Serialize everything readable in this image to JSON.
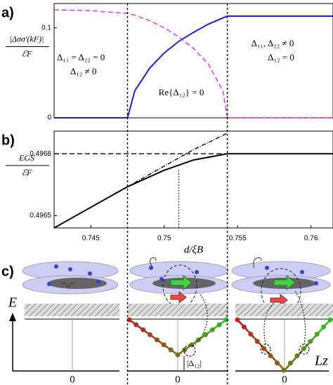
{
  "chart_data": [
    {
      "type": "line",
      "panel_label": "a)",
      "ylabel": {
        "numerator": "|Δσσ′(kF)|",
        "denominator": "ℰF"
      },
      "annotations": [
        "Δ₁₁ = Δ₂₂ = 0",
        "Δ₁₂ ≠ 0",
        "Re{Δ₁₂} = 0",
        "Δ₁₁, Δ₂₂ ≠ 0",
        "Δ₁₂ = 0"
      ],
      "x": [
        0.7425,
        0.745,
        0.7475,
        0.748,
        0.749,
        0.75,
        0.751,
        0.752,
        0.753,
        0.754,
        0.7543,
        0.756,
        0.758,
        0.76,
        0.7615
      ],
      "series": [
        {
          "color": "#1f1fd0",
          "dash": "solid",
          "values": [
            0,
            0,
            0,
            0.03,
            0.055,
            0.072,
            0.085,
            0.095,
            0.104,
            0.111,
            0.113,
            0.113,
            0.113,
            0.113,
            0.113
          ]
        },
        {
          "color": "#f020f0",
          "dash": "dashed",
          "values": [
            0.12,
            0.119,
            0.116,
            0.114,
            0.108,
            0.1,
            0.09,
            0.077,
            0.06,
            0.03,
            0,
            0,
            0,
            0,
            0
          ]
        }
      ],
      "xlim": [
        0.7425,
        0.7615
      ],
      "ylim": [
        0,
        0.127
      ],
      "yticks": [
        0,
        0.1
      ],
      "vlines": [
        0.7475,
        0.7543
      ]
    },
    {
      "type": "line",
      "panel_label": "b)",
      "ylabel": {
        "numerator": "EGS",
        "denominator": "ℰF"
      },
      "xlabel": "d/ξB",
      "x": [
        0.7425,
        0.745,
        0.7475,
        0.75,
        0.752,
        0.7543,
        0.756,
        0.758,
        0.76,
        0.7615
      ],
      "series": [
        {
          "color": "#000000",
          "dash": "solid",
          "values": [
            0.49644,
            0.49654,
            0.49664,
            0.49672,
            0.49677,
            0.4968,
            0.4968,
            0.4968,
            0.4968,
            0.4968
          ]
        },
        {
          "color": "#000000",
          "dash": "dashed",
          "values": [
            0.4968,
            0.4968,
            0.4968,
            0.4968,
            0.4968,
            0.4968,
            null,
            null,
            null,
            null
          ]
        },
        {
          "color": "#000000",
          "dash": "dashdot",
          "values": [
            null,
            null,
            0.49664,
            0.49674,
            0.49682,
            0.4969,
            null,
            null,
            null,
            null
          ]
        }
      ],
      "xlim": [
        0.7425,
        0.7615
      ],
      "ylim": [
        0.49644,
        0.49691
      ],
      "xticks": [
        0.745,
        0.75,
        0.755,
        0.76
      ],
      "yticks": [
        0.4965,
        0.4968
      ],
      "vlines": [
        0.751
      ]
    }
  ],
  "diagram": {
    "panel_label": "c)",
    "energy_label": "E",
    "zero_labels": [
      "0",
      "0",
      "0"
    ],
    "lz_label": "Lz",
    "gap_label": "|Δ₁₂|"
  }
}
